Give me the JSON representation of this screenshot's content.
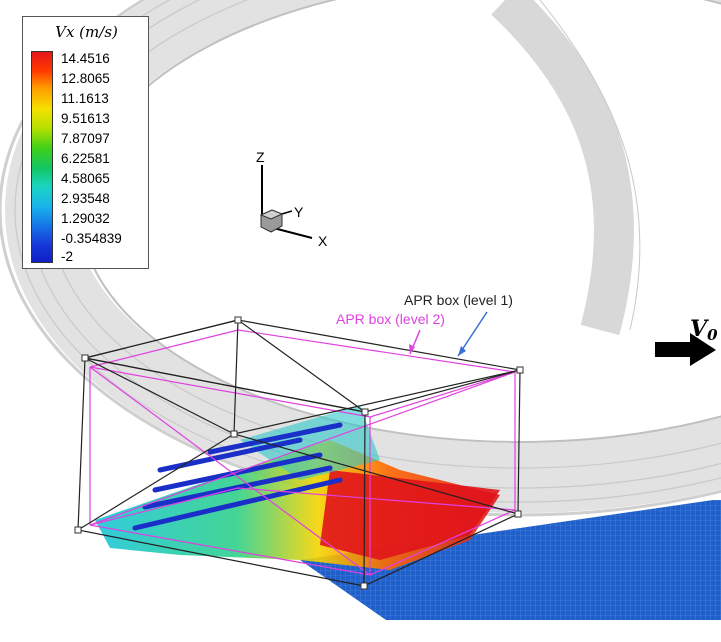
{
  "legend": {
    "title": "Vx (m/s)",
    "values": [
      "14.4516",
      "12.8065",
      "11.1613",
      "9.51613",
      "7.87097",
      "6.22581",
      "4.58065",
      "2.93548",
      "1.29032",
      "-0.354839",
      "-2"
    ]
  },
  "axes": {
    "z": "Z",
    "y": "Y",
    "x": "X"
  },
  "annotations": {
    "apr_level1": "APR box (level 1)",
    "apr_level2": "APR box (level 2)",
    "velocity": "V",
    "velocity_sub": "0"
  },
  "colors": {
    "apr_level1": "#222222",
    "apr_level2": "#e040e0",
    "arrow_level1": "#3a6fd8",
    "road": "#1f5fc9",
    "tire": "#e6e6e6"
  }
}
